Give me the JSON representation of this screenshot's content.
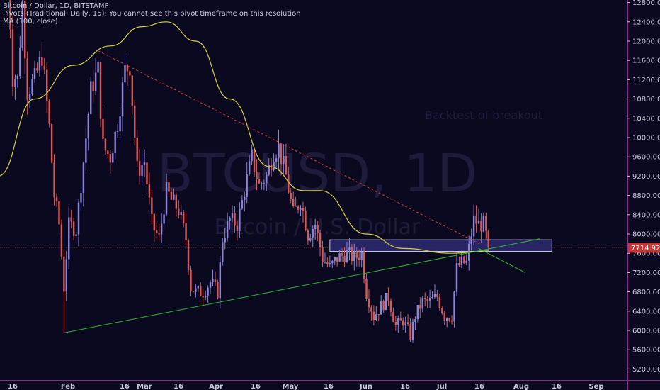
{
  "legend": {
    "symbol": "Bitcoin / Dollar, 1D, BITSTAMP",
    "pivots": "Pivots (Traditional, Daily, 15): You cannot see this pivot timeframe on this resolution",
    "ma": "MA (100, close)"
  },
  "watermark": {
    "ticker": "BTCUSD, 1D",
    "name": "Bitcoin / U.S. Dollar"
  },
  "annotation": "Backtest of breakout",
  "price_label": "7714.92",
  "colors": {
    "background": "#0b0920",
    "candle_up": "#8b86d8",
    "candle_down": "#d65a5a",
    "ma": "#d6d23a",
    "trend_support": "#2fb82f",
    "trend_resistance": "#d83a3a",
    "zone_fill": "#2e2a72",
    "zone_border": "#c8c8f0",
    "axis_border": "#8c2a8c",
    "price_label_bg": "#c83232"
  },
  "chart_data": {
    "type": "candlestick",
    "y_ticks": [
      "5200.00",
      "5600.00",
      "6000.00",
      "6400.00",
      "6800.00",
      "7200.00",
      "7600.00",
      "8000.00",
      "8400.00",
      "8800.00",
      "9200.00",
      "9600.00",
      "10000.00",
      "10400.00",
      "10800.00",
      "11200.00",
      "11600.00",
      "12000.00",
      "12400.00",
      "12800.00"
    ],
    "x_ticks": [
      "16",
      "Feb",
      "16",
      "Mar",
      "16",
      "Apr",
      "16",
      "May",
      "16",
      "Jun",
      "16",
      "Jul",
      "16",
      "Aug",
      "16",
      "Sep"
    ],
    "ylim": [
      5000,
      13000
    ],
    "last_price": 7714.92,
    "close_path": [
      {
        "date": "2018-01-14",
        "close": 13500
      },
      {
        "date": "2018-01-16",
        "close": 11300
      },
      {
        "date": "2018-01-18",
        "close": 11200
      },
      {
        "date": "2018-01-20",
        "close": 12800
      },
      {
        "date": "2018-01-22",
        "close": 11000
      },
      {
        "date": "2018-01-25",
        "close": 11200
      },
      {
        "date": "2018-01-28",
        "close": 11700
      },
      {
        "date": "2018-01-31",
        "close": 10200
      },
      {
        "date": "2018-02-02",
        "close": 8800
      },
      {
        "date": "2018-02-04",
        "close": 8200
      },
      {
        "date": "2018-02-06",
        "close": 6900
      },
      {
        "date": "2018-02-08",
        "close": 8200
      },
      {
        "date": "2018-02-11",
        "close": 8100
      },
      {
        "date": "2018-02-14",
        "close": 9500
      },
      {
        "date": "2018-02-17",
        "close": 11000
      },
      {
        "date": "2018-02-20",
        "close": 11400
      },
      {
        "date": "2018-02-22",
        "close": 9800
      },
      {
        "date": "2018-02-25",
        "close": 9600
      },
      {
        "date": "2018-02-28",
        "close": 10300
      },
      {
        "date": "2018-03-03",
        "close": 11400
      },
      {
        "date": "2018-03-05",
        "close": 11500
      },
      {
        "date": "2018-03-08",
        "close": 9300
      },
      {
        "date": "2018-03-11",
        "close": 9500
      },
      {
        "date": "2018-03-14",
        "close": 8200
      },
      {
        "date": "2018-03-17",
        "close": 7900
      },
      {
        "date": "2018-03-20",
        "close": 8900
      },
      {
        "date": "2018-03-22",
        "close": 8700
      },
      {
        "date": "2018-03-25",
        "close": 8500
      },
      {
        "date": "2018-03-28",
        "close": 7900
      },
      {
        "date": "2018-03-30",
        "close": 6900
      },
      {
        "date": "2018-04-01",
        "close": 6800
      },
      {
        "date": "2018-04-04",
        "close": 6800
      },
      {
        "date": "2018-04-07",
        "close": 7000
      },
      {
        "date": "2018-04-10",
        "close": 6800
      },
      {
        "date": "2018-04-12",
        "close": 7900
      },
      {
        "date": "2018-04-15",
        "close": 8300
      },
      {
        "date": "2018-04-18",
        "close": 8200
      },
      {
        "date": "2018-04-21",
        "close": 8900
      },
      {
        "date": "2018-04-24",
        "close": 9600
      },
      {
        "date": "2018-04-27",
        "close": 9000
      },
      {
        "date": "2018-04-30",
        "close": 9200
      },
      {
        "date": "2018-05-03",
        "close": 9700
      },
      {
        "date": "2018-05-05",
        "close": 9800
      },
      {
        "date": "2018-05-08",
        "close": 9200
      },
      {
        "date": "2018-05-11",
        "close": 8400
      },
      {
        "date": "2018-05-14",
        "close": 8700
      },
      {
        "date": "2018-05-17",
        "close": 8000
      },
      {
        "date": "2018-05-20",
        "close": 8200
      },
      {
        "date": "2018-05-23",
        "close": 7500
      },
      {
        "date": "2018-05-26",
        "close": 7300
      },
      {
        "date": "2018-05-29",
        "close": 7500
      },
      {
        "date": "2018-06-02",
        "close": 7600
      },
      {
        "date": "2018-06-05",
        "close": 7500
      },
      {
        "date": "2018-06-08",
        "close": 7600
      },
      {
        "date": "2018-06-10",
        "close": 6800
      },
      {
        "date": "2018-06-13",
        "close": 6300
      },
      {
        "date": "2018-06-16",
        "close": 6500
      },
      {
        "date": "2018-06-19",
        "close": 6700
      },
      {
        "date": "2018-06-22",
        "close": 6100
      },
      {
        "date": "2018-06-25",
        "close": 6200
      },
      {
        "date": "2018-06-28",
        "close": 5900
      },
      {
        "date": "2018-06-30",
        "close": 6300
      },
      {
        "date": "2018-07-03",
        "close": 6600
      },
      {
        "date": "2018-07-06",
        "close": 6600
      },
      {
        "date": "2018-07-09",
        "close": 6700
      },
      {
        "date": "2018-07-12",
        "close": 6300
      },
      {
        "date": "2018-07-15",
        "close": 6300
      },
      {
        "date": "2018-07-17",
        "close": 7300
      },
      {
        "date": "2018-07-19",
        "close": 7400
      },
      {
        "date": "2018-07-21",
        "close": 7400
      },
      {
        "date": "2018-07-24",
        "close": 8300
      },
      {
        "date": "2018-07-26",
        "close": 8200
      },
      {
        "date": "2018-07-28",
        "close": 8200
      },
      {
        "date": "2018-07-30",
        "close": 7715
      }
    ],
    "moving_average_path": [
      {
        "date": "2018-01-10",
        "value": 9200
      },
      {
        "date": "2018-01-25",
        "value": 10800
      },
      {
        "date": "2018-02-10",
        "value": 11500
      },
      {
        "date": "2018-02-25",
        "value": 11900
      },
      {
        "date": "2018-03-10",
        "value": 12300
      },
      {
        "date": "2018-03-20",
        "value": 12400
      },
      {
        "date": "2018-04-01",
        "value": 12000
      },
      {
        "date": "2018-04-15",
        "value": 10800
      },
      {
        "date": "2018-05-01",
        "value": 9400
      },
      {
        "date": "2018-05-15",
        "value": 8900
      },
      {
        "date": "2018-05-22",
        "value": 8900
      },
      {
        "date": "2018-06-10",
        "value": 8000
      },
      {
        "date": "2018-06-25",
        "value": 7700
      },
      {
        "date": "2018-07-15",
        "value": 7600
      },
      {
        "date": "2018-07-30",
        "value": 7650
      }
    ],
    "resistance_line": [
      {
        "date": "2018-02-20",
        "value": 11800
      },
      {
        "date": "2018-07-27",
        "value": 7780
      }
    ],
    "support_line": [
      {
        "date": "2018-02-06",
        "value": 5950
      },
      {
        "date": "2018-08-20",
        "value": 7900
      }
    ],
    "green_down_line": [
      {
        "date": "2018-07-26",
        "value": 7700
      },
      {
        "date": "2018-08-14",
        "value": 7200
      }
    ],
    "zone": {
      "top": 7880,
      "bottom": 7640,
      "start": "2018-05-26",
      "end": "2018-08-25"
    }
  }
}
